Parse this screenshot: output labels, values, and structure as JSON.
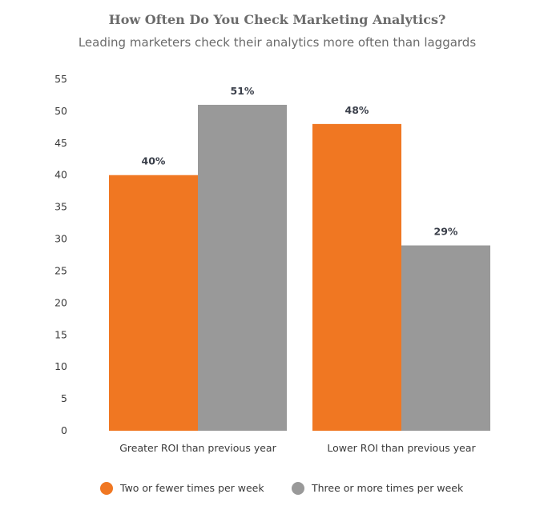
{
  "chart_data": {
    "type": "bar",
    "title": "How Often Do You Check Marketing Analytics?",
    "subtitle": "Leading marketers check their analytics more often than laggards",
    "xlabel": "",
    "ylabel": "",
    "ylim": [
      0,
      55
    ],
    "yticks": [
      0,
      5,
      10,
      15,
      20,
      25,
      30,
      35,
      40,
      45,
      50,
      55
    ],
    "grid": false,
    "legend_placement": "bottom",
    "categories": [
      "Greater ROI than previous year",
      "Lower ROI than previous year"
    ],
    "series": [
      {
        "name": "Two or fewer times per week",
        "color": "#f07722",
        "values": [
          40,
          48
        ],
        "labels": [
          "40%",
          "48%"
        ]
      },
      {
        "name": "Three or more times per week",
        "color": "#999999",
        "values": [
          51,
          29
        ],
        "labels": [
          "51%",
          "29%"
        ]
      }
    ]
  }
}
